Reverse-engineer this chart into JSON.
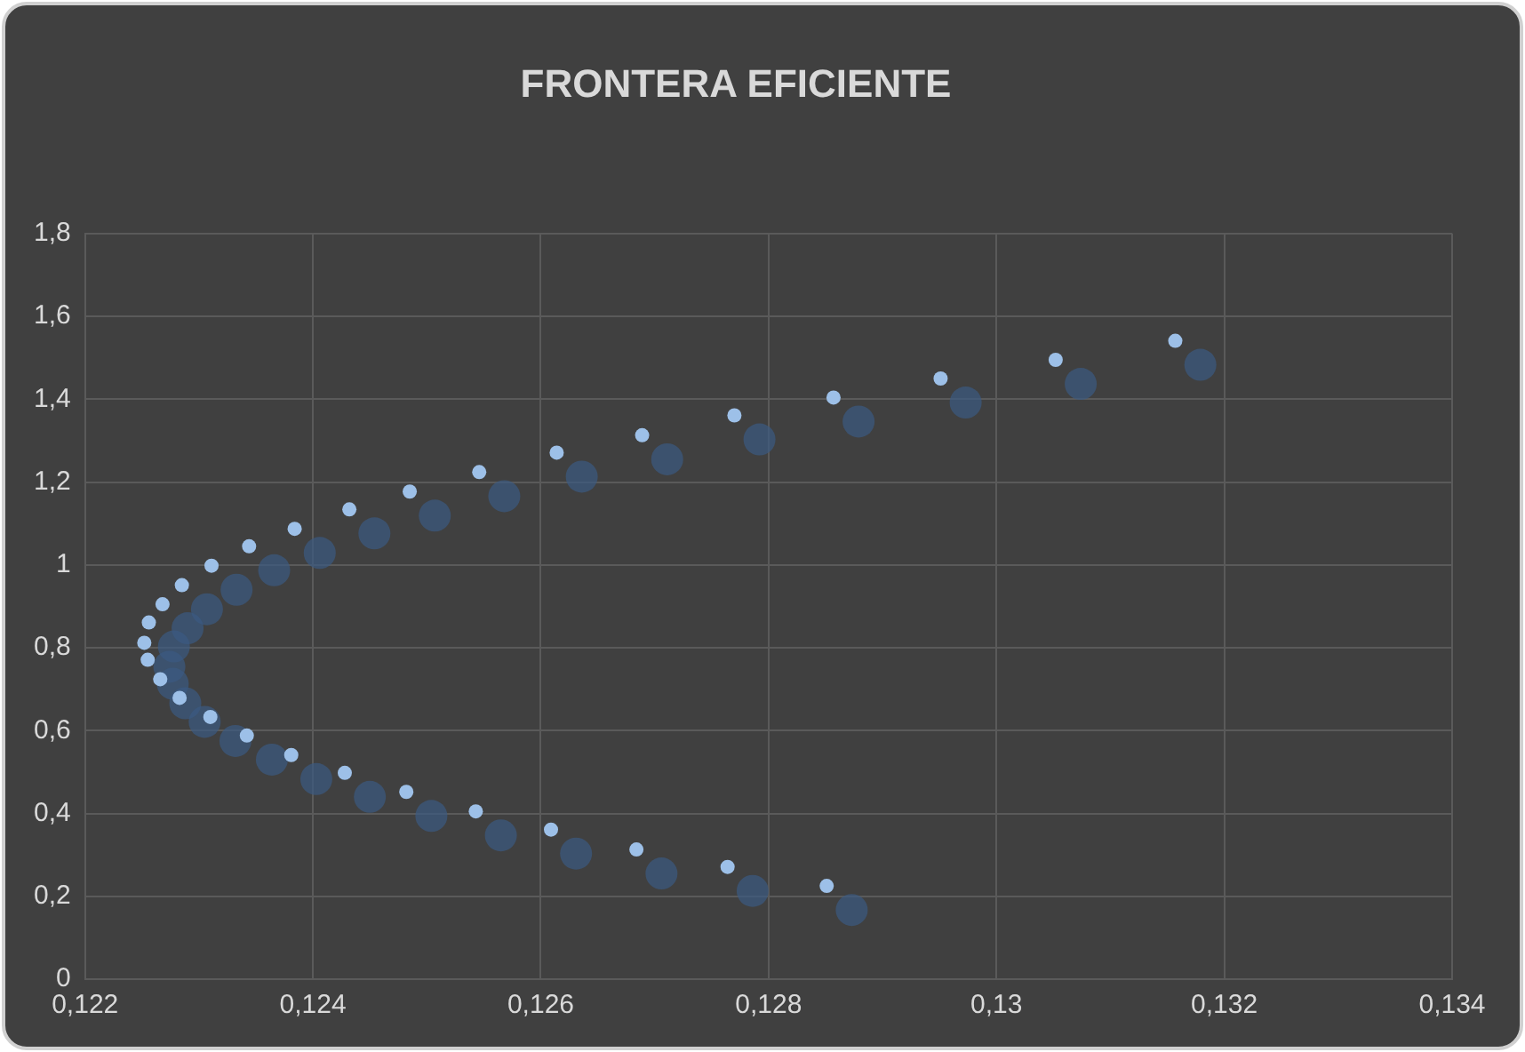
{
  "chart_data": {
    "type": "scatter",
    "title": "FRONTERA EFICIENTE",
    "xlim": [
      0.122,
      0.134
    ],
    "xticks": [
      {
        "value": 0.122,
        "label": "0,122"
      },
      {
        "value": 0.124,
        "label": "0,124"
      },
      {
        "value": 0.126,
        "label": "0,126"
      },
      {
        "value": 0.128,
        "label": "0,128"
      },
      {
        "value": 0.13,
        "label": "0,13"
      },
      {
        "value": 0.132,
        "label": "0,132"
      },
      {
        "value": 0.134,
        "label": "0,134"
      }
    ],
    "ylim": [
      0,
      1.8
    ],
    "yticks": [
      0,
      {
        "value": 0.2,
        "label": "0,2"
      },
      {
        "value": 0.4,
        "label": "0,4"
      },
      {
        "value": 0.6,
        "label": "0,6"
      },
      {
        "value": 0.8,
        "label": "0,8"
      },
      1,
      {
        "value": 1.2,
        "label": "1,2"
      },
      {
        "value": 1.4,
        "label": "1,4"
      },
      {
        "value": 1.6,
        "label": "1,6"
      },
      {
        "value": 1.8,
        "label": "1,8"
      }
    ],
    "grid": true,
    "legend": false,
    "marker": "circle",
    "series": [
      {
        "color": "#3b5a82",
        "x": [
          0.13179,
          0.13074,
          0.12973,
          0.12879,
          0.12792,
          0.12711,
          0.12636,
          0.12568,
          0.12507,
          0.12454,
          0.12406,
          0.12366,
          0.12333,
          0.12307,
          0.1229,
          0.12278,
          0.12274,
          0.12277,
          0.12288,
          0.12305,
          0.12332,
          0.12364,
          0.12403,
          0.1245,
          0.12504,
          0.12565,
          0.12631,
          0.12706,
          0.12786,
          0.12873
        ],
        "values": [
          1.483,
          1.437,
          1.392,
          1.346,
          1.303,
          1.255,
          1.213,
          1.166,
          1.119,
          1.076,
          1.029,
          0.987,
          0.94,
          0.893,
          0.847,
          0.803,
          0.754,
          0.713,
          0.666,
          0.621,
          0.575,
          0.53,
          0.483,
          0.44,
          0.394,
          0.347,
          0.303,
          0.255,
          0.213,
          0.167
        ]
      },
      {
        "color": "#9dc0e8",
        "x": [
          0.13157,
          0.13052,
          0.12951,
          0.12857,
          0.1277,
          0.12689,
          0.12614,
          0.12546,
          0.12485,
          0.12432,
          0.12384,
          0.12344,
          0.12311,
          0.12285,
          0.12268,
          0.12256,
          0.12252,
          0.12255,
          0.12266,
          0.12283,
          0.1231,
          0.12342,
          0.12381,
          0.12428,
          0.12482,
          0.12543,
          0.12609,
          0.12684,
          0.12764,
          0.12851
        ],
        "values": [
          1.541,
          1.495,
          1.45,
          1.404,
          1.361,
          1.313,
          1.271,
          1.224,
          1.177,
          1.134,
          1.087,
          1.045,
          0.998,
          0.951,
          0.905,
          0.861,
          0.812,
          0.771,
          0.724,
          0.679,
          0.633,
          0.588,
          0.541,
          0.498,
          0.452,
          0.405,
          0.361,
          0.313,
          0.271,
          0.225
        ]
      }
    ]
  }
}
